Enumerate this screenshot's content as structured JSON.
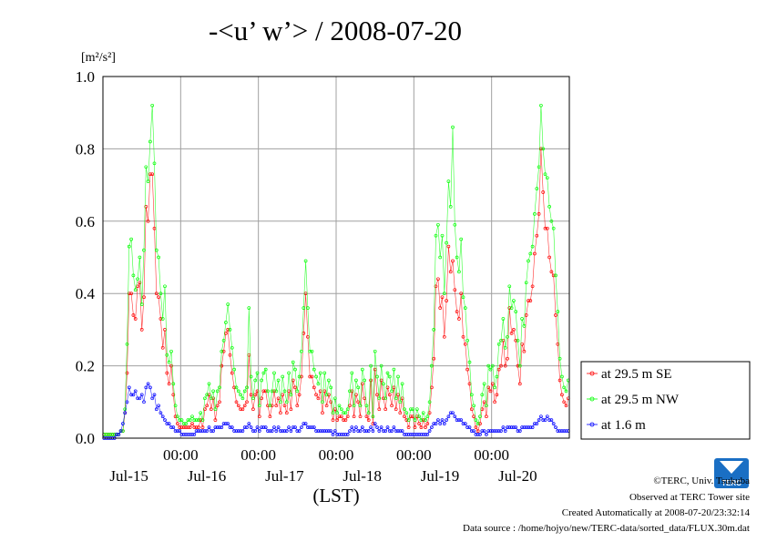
{
  "chart_data": {
    "type": "line",
    "title": "-<u’ w’> / 2008-07-20",
    "ylabel": "[m²/s²]",
    "xlabel": "(LST)",
    "ylim": [
      0,
      1.0
    ],
    "yticks": [
      "0.0",
      "0.2",
      "0.4",
      "0.6",
      "0.8",
      "1.0"
    ],
    "x_tick_times": [
      "00:00",
      "00:00",
      "00:00",
      "00:00",
      "00:00"
    ],
    "x_day_labels": [
      "Jul-15",
      "Jul-16",
      "Jul-17",
      "Jul-18",
      "Jul-19",
      "Jul-20"
    ],
    "grid": true,
    "legend_position": "right",
    "series": [
      {
        "name": "at 29.5 m SE",
        "color": "#ff0000",
        "values": [
          0.01,
          0.01,
          0.01,
          0.01,
          0.01,
          0.01,
          0.01,
          0.01,
          0.02,
          0.02,
          0.07,
          0.18,
          0.4,
          0.4,
          0.34,
          0.33,
          0.42,
          0.43,
          0.3,
          0.39,
          0.64,
          0.6,
          0.73,
          0.73,
          0.58,
          0.4,
          0.39,
          0.33,
          0.25,
          0.3,
          0.18,
          0.15,
          0.2,
          0.12,
          0.06,
          0.04,
          0.03,
          0.03,
          0.03,
          0.03,
          0.03,
          0.03,
          0.04,
          0.03,
          0.03,
          0.03,
          0.05,
          0.03,
          0.08,
          0.09,
          0.12,
          0.08,
          0.11,
          0.05,
          0.09,
          0.1,
          0.2,
          0.24,
          0.29,
          0.3,
          0.23,
          0.18,
          0.14,
          0.1,
          0.09,
          0.08,
          0.08,
          0.09,
          0.1,
          0.23,
          0.12,
          0.08,
          0.12,
          0.13,
          0.06,
          0.11,
          0.13,
          0.13,
          0.09,
          0.06,
          0.09,
          0.13,
          0.09,
          0.11,
          0.07,
          0.12,
          0.09,
          0.07,
          0.13,
          0.08,
          0.16,
          0.14,
          0.09,
          0.12,
          0.17,
          0.29,
          0.4,
          0.28,
          0.17,
          0.17,
          0.14,
          0.12,
          0.11,
          0.13,
          0.07,
          0.13,
          0.09,
          0.12,
          0.1,
          0.05,
          0.08,
          0.05,
          0.06,
          0.06,
          0.05,
          0.05,
          0.06,
          0.09,
          0.13,
          0.06,
          0.12,
          0.1,
          0.06,
          0.15,
          0.11,
          0.06,
          0.05,
          0.16,
          0.04,
          0.19,
          0.12,
          0.08,
          0.16,
          0.11,
          0.08,
          0.14,
          0.12,
          0.09,
          0.14,
          0.08,
          0.12,
          0.07,
          0.11,
          0.06,
          0.05,
          0.03,
          0.06,
          0.06,
          0.03,
          0.06,
          0.04,
          0.03,
          0.05,
          0.03,
          0.04,
          0.07,
          0.14,
          0.22,
          0.42,
          0.44,
          0.36,
          0.39,
          0.28,
          0.38,
          0.53,
          0.46,
          0.49,
          0.41,
          0.35,
          0.33,
          0.4,
          0.28,
          0.26,
          0.19,
          0.15,
          0.08,
          0.06,
          0.03,
          0.02,
          0.04,
          0.08,
          0.1,
          0.06,
          0.14,
          0.13,
          0.15,
          0.1,
          0.12,
          0.19,
          0.2,
          0.27,
          0.2,
          0.22,
          0.36,
          0.29,
          0.3,
          0.27,
          0.2,
          0.15,
          0.26,
          0.24,
          0.34,
          0.38,
          0.38,
          0.42,
          0.51,
          0.56,
          0.62,
          0.8,
          0.68,
          0.58,
          0.58,
          0.5,
          0.46,
          0.45,
          0.34,
          0.26,
          0.16,
          0.12,
          0.1,
          0.09,
          0.11
        ]
      },
      {
        "name": "at 29.5 m NW",
        "color": "#00ff00",
        "values": [
          0.01,
          0.01,
          0.01,
          0.01,
          0.01,
          0.01,
          0.01,
          0.01,
          0.02,
          0.02,
          0.08,
          0.26,
          0.53,
          0.55,
          0.45,
          0.41,
          0.44,
          0.5,
          0.37,
          0.52,
          0.75,
          0.71,
          0.82,
          0.92,
          0.76,
          0.52,
          0.5,
          0.4,
          0.33,
          0.42,
          0.23,
          0.21,
          0.24,
          0.15,
          0.09,
          0.06,
          0.05,
          0.05,
          0.04,
          0.04,
          0.05,
          0.05,
          0.06,
          0.05,
          0.05,
          0.05,
          0.07,
          0.05,
          0.11,
          0.12,
          0.15,
          0.11,
          0.13,
          0.08,
          0.13,
          0.14,
          0.24,
          0.27,
          0.32,
          0.37,
          0.3,
          0.25,
          0.19,
          0.14,
          0.13,
          0.12,
          0.11,
          0.13,
          0.14,
          0.36,
          0.17,
          0.11,
          0.16,
          0.18,
          0.09,
          0.16,
          0.18,
          0.19,
          0.13,
          0.09,
          0.13,
          0.18,
          0.13,
          0.16,
          0.1,
          0.17,
          0.13,
          0.1,
          0.18,
          0.12,
          0.21,
          0.19,
          0.13,
          0.17,
          0.24,
          0.36,
          0.49,
          0.36,
          0.24,
          0.24,
          0.19,
          0.17,
          0.15,
          0.18,
          0.1,
          0.18,
          0.12,
          0.16,
          0.14,
          0.07,
          0.11,
          0.07,
          0.09,
          0.08,
          0.07,
          0.07,
          0.08,
          0.13,
          0.18,
          0.09,
          0.16,
          0.14,
          0.09,
          0.19,
          0.16,
          0.09,
          0.07,
          0.2,
          0.06,
          0.24,
          0.17,
          0.11,
          0.2,
          0.15,
          0.11,
          0.18,
          0.17,
          0.13,
          0.19,
          0.11,
          0.17,
          0.1,
          0.15,
          0.08,
          0.07,
          0.05,
          0.08,
          0.08,
          0.05,
          0.08,
          0.06,
          0.05,
          0.07,
          0.05,
          0.06,
          0.1,
          0.2,
          0.3,
          0.56,
          0.59,
          0.5,
          0.56,
          0.4,
          0.54,
          0.71,
          0.64,
          0.86,
          0.59,
          0.5,
          0.46,
          0.55,
          0.39,
          0.36,
          0.27,
          0.21,
          0.12,
          0.09,
          0.05,
          0.04,
          0.06,
          0.12,
          0.15,
          0.09,
          0.2,
          0.19,
          0.2,
          0.14,
          0.17,
          0.26,
          0.27,
          0.33,
          0.25,
          0.28,
          0.42,
          0.36,
          0.38,
          0.35,
          0.27,
          0.2,
          0.33,
          0.31,
          0.43,
          0.49,
          0.51,
          0.53,
          0.62,
          0.69,
          0.75,
          0.92,
          0.8,
          0.73,
          0.72,
          0.64,
          0.6,
          0.58,
          0.45,
          0.35,
          0.22,
          0.17,
          0.14,
          0.13,
          0.16
        ]
      },
      {
        "name": "at 1.6 m",
        "color": "#0000ff",
        "values": [
          0.0,
          0.0,
          0.0,
          0.0,
          0.0,
          0.0,
          0.01,
          0.01,
          0.02,
          0.04,
          0.07,
          0.1,
          0.14,
          0.12,
          0.12,
          0.13,
          0.11,
          0.11,
          0.12,
          0.1,
          0.14,
          0.15,
          0.14,
          0.11,
          0.12,
          0.08,
          0.09,
          0.07,
          0.06,
          0.05,
          0.04,
          0.04,
          0.03,
          0.03,
          0.02,
          0.02,
          0.02,
          0.01,
          0.01,
          0.01,
          0.01,
          0.01,
          0.01,
          0.01,
          0.02,
          0.02,
          0.02,
          0.02,
          0.02,
          0.02,
          0.03,
          0.02,
          0.02,
          0.03,
          0.03,
          0.03,
          0.03,
          0.04,
          0.04,
          0.04,
          0.03,
          0.03,
          0.02,
          0.02,
          0.02,
          0.02,
          0.02,
          0.03,
          0.03,
          0.04,
          0.03,
          0.02,
          0.02,
          0.03,
          0.02,
          0.03,
          0.03,
          0.03,
          0.02,
          0.02,
          0.02,
          0.03,
          0.02,
          0.03,
          0.02,
          0.02,
          0.02,
          0.02,
          0.03,
          0.02,
          0.03,
          0.03,
          0.02,
          0.02,
          0.03,
          0.04,
          0.04,
          0.03,
          0.03,
          0.03,
          0.03,
          0.02,
          0.02,
          0.02,
          0.02,
          0.02,
          0.02,
          0.02,
          0.02,
          0.01,
          0.02,
          0.01,
          0.01,
          0.01,
          0.01,
          0.01,
          0.01,
          0.02,
          0.03,
          0.02,
          0.03,
          0.02,
          0.02,
          0.03,
          0.02,
          0.02,
          0.02,
          0.03,
          0.02,
          0.04,
          0.03,
          0.02,
          0.03,
          0.02,
          0.02,
          0.03,
          0.02,
          0.02,
          0.03,
          0.02,
          0.02,
          0.02,
          0.02,
          0.01,
          0.01,
          0.01,
          0.01,
          0.01,
          0.01,
          0.01,
          0.01,
          0.01,
          0.01,
          0.01,
          0.01,
          0.02,
          0.03,
          0.04,
          0.04,
          0.05,
          0.04,
          0.05,
          0.04,
          0.05,
          0.06,
          0.07,
          0.07,
          0.06,
          0.05,
          0.05,
          0.05,
          0.04,
          0.04,
          0.03,
          0.03,
          0.02,
          0.02,
          0.01,
          0.01,
          0.01,
          0.02,
          0.02,
          0.01,
          0.02,
          0.02,
          0.02,
          0.02,
          0.02,
          0.02,
          0.02,
          0.03,
          0.02,
          0.03,
          0.03,
          0.03,
          0.03,
          0.03,
          0.02,
          0.02,
          0.03,
          0.03,
          0.03,
          0.03,
          0.03,
          0.03,
          0.04,
          0.04,
          0.05,
          0.06,
          0.05,
          0.05,
          0.06,
          0.05,
          0.05,
          0.04,
          0.03,
          0.02,
          0.02,
          0.02,
          0.02,
          0.02,
          0.02
        ]
      }
    ]
  },
  "footer": {
    "copyright": "©TERC, Univ. Tsukuba",
    "observed": "Observed at TERC Tower site",
    "created": "Created Automatically at 2008-07-20/23:32:14",
    "source": "Data source : /home/hojyo/new/TERC-data/sorted_data/FLUX.30m.dat"
  },
  "logo": {
    "text": "TERC",
    "color": "#1a6fc4"
  }
}
